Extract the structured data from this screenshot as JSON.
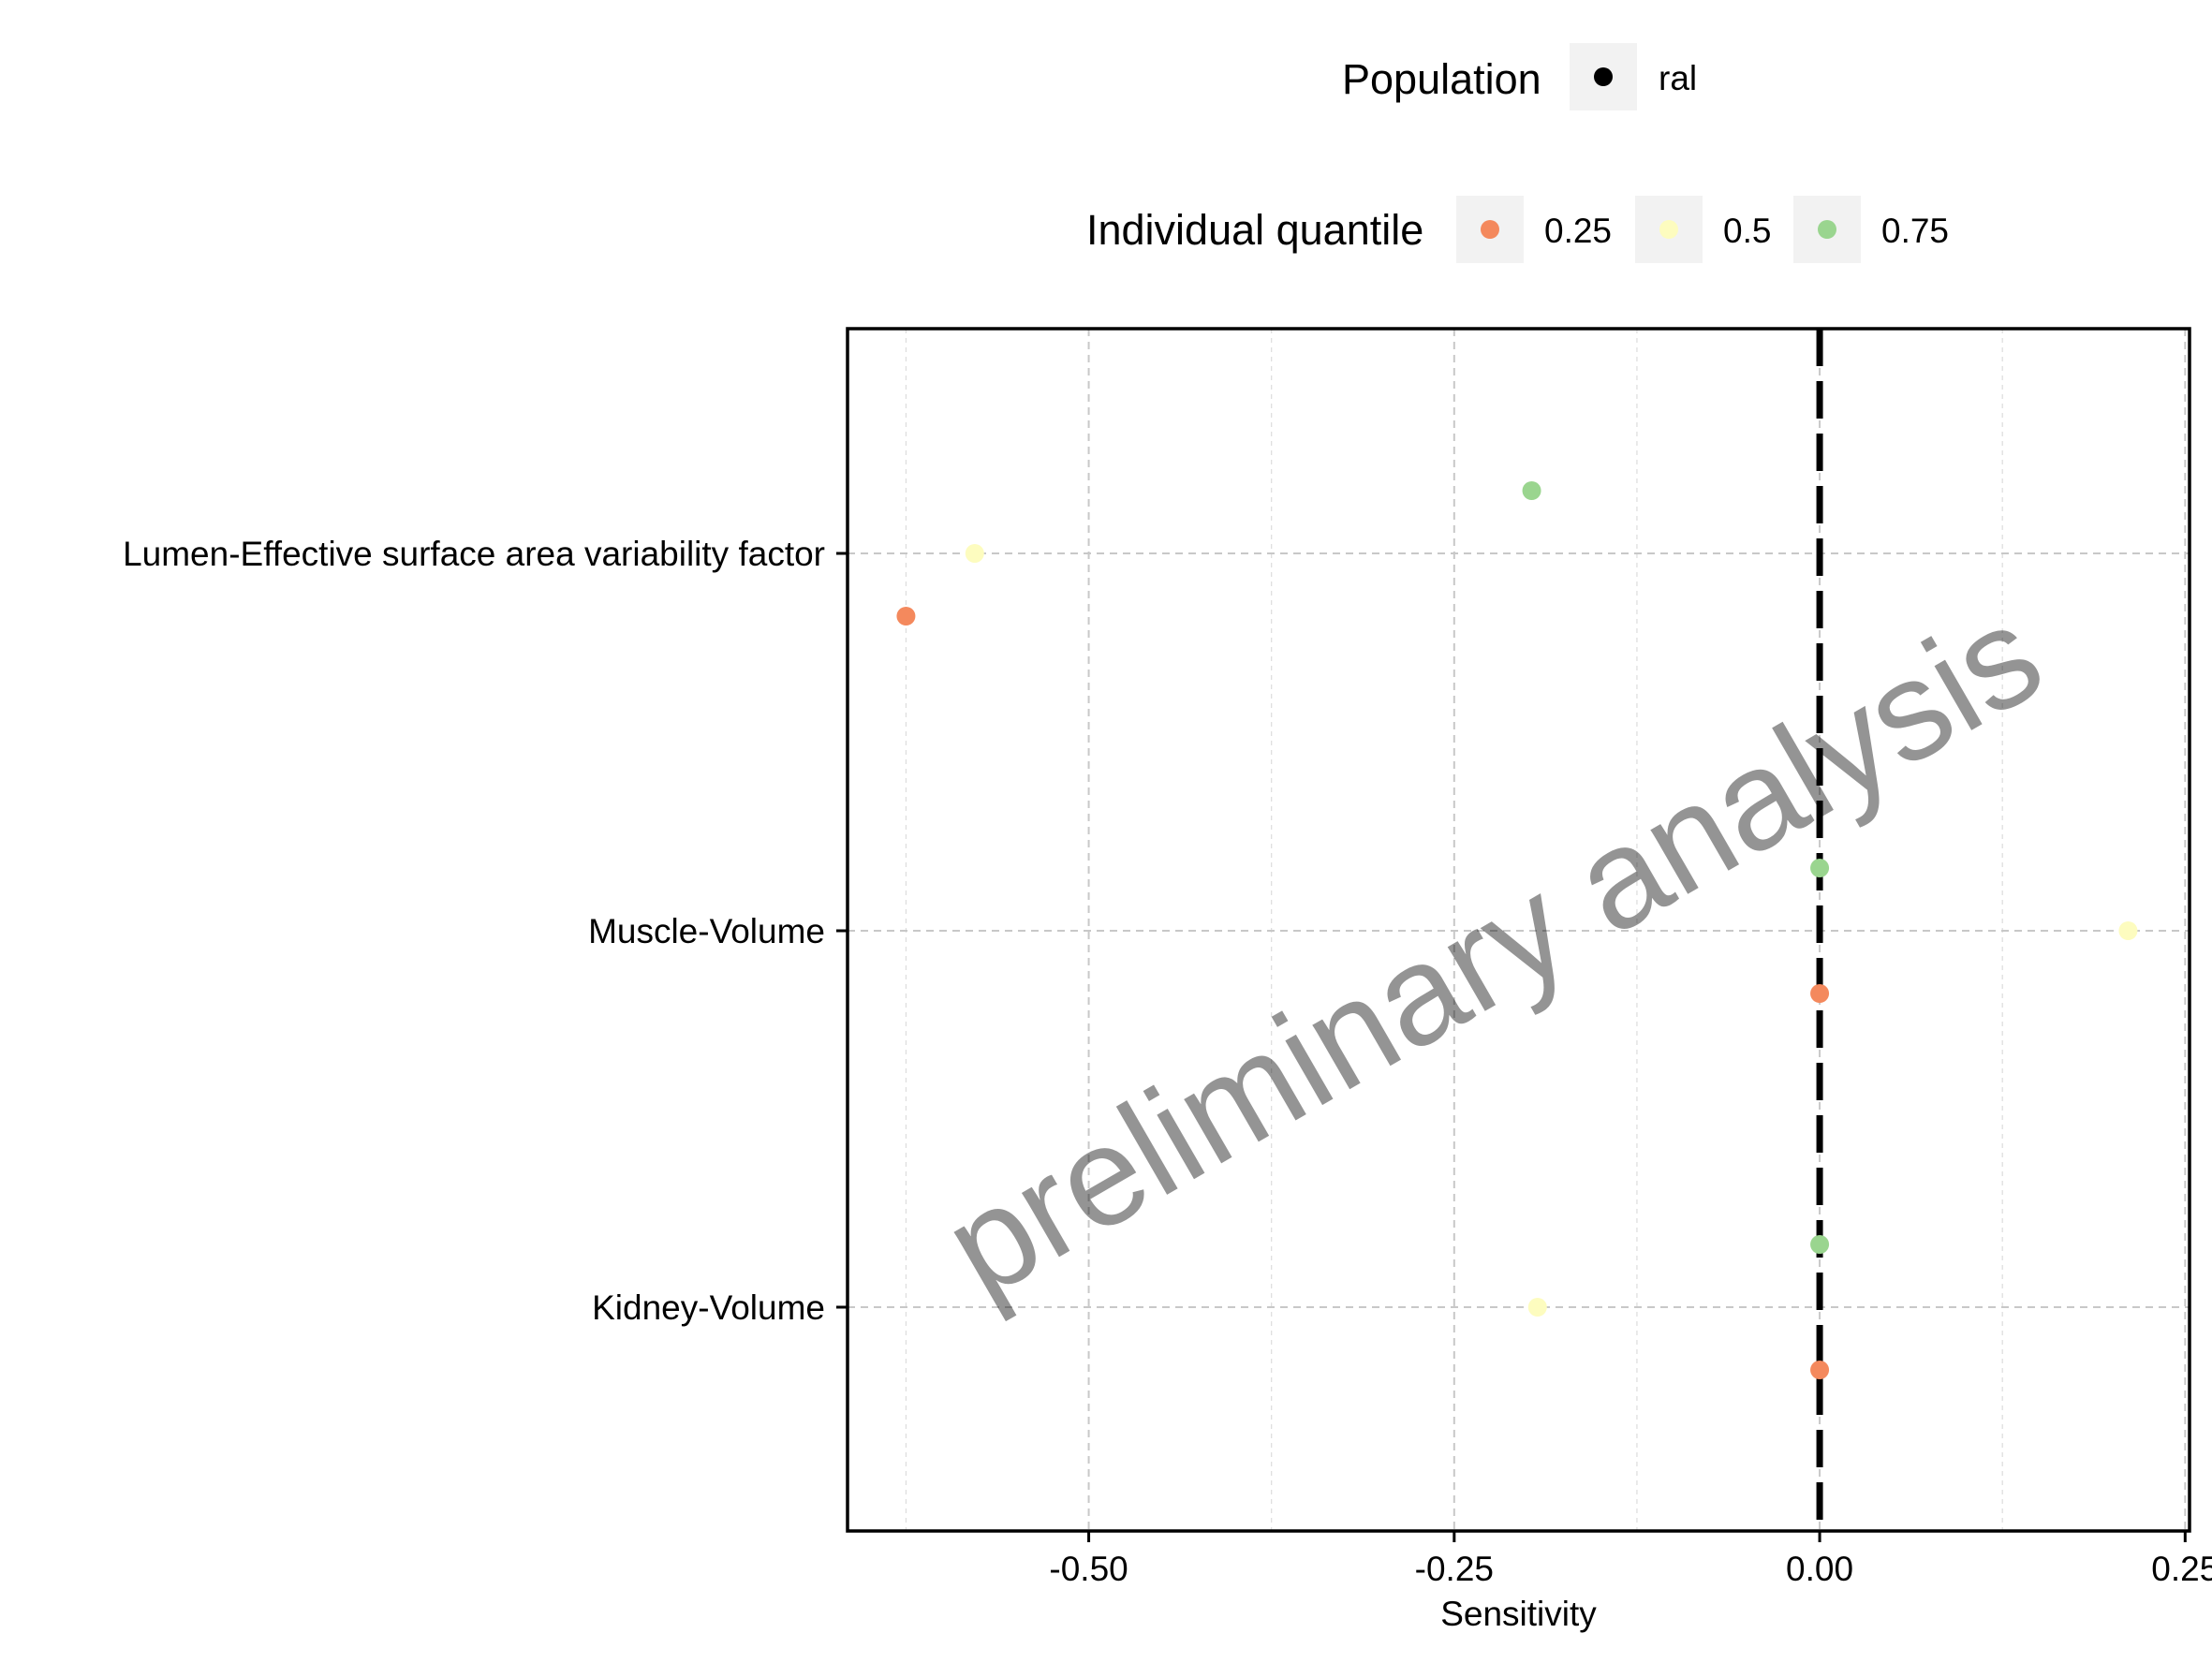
{
  "chart_data": {
    "type": "scatter",
    "title": "",
    "xlabel": "Sensitivity",
    "ylabel": "",
    "xlim": [
      -0.665,
      0.253
    ],
    "x_ticks": [
      {
        "value": -0.5,
        "label": "-0.50"
      },
      {
        "value": -0.25,
        "label": "-0.25"
      },
      {
        "value": 0.0,
        "label": "0.00"
      },
      {
        "value": 0.25,
        "label": "0.25"
      }
    ],
    "x_minor_ticks": [
      -0.625,
      -0.375,
      -0.125,
      0.125
    ],
    "categories": [
      "Lumen-Effective surface area variability factor",
      "Muscle-Volume",
      "Kidney-Volume"
    ],
    "reference_line": {
      "x": 0,
      "style": "dashed",
      "color": "#000000"
    },
    "grid": true,
    "series": [
      {
        "name": "0.25",
        "color": "#f4895d",
        "values": [
          -0.625,
          0.0,
          0.0
        ]
      },
      {
        "name": "0.5",
        "color": "#fdfcbf",
        "values": [
          -0.578,
          0.211,
          -0.193
        ]
      },
      {
        "name": "0.75",
        "color": "#9ad58f",
        "values": [
          -0.197,
          0.0,
          0.0
        ]
      }
    ],
    "legend": {
      "placement": "top",
      "population": {
        "title": "Population",
        "entries": [
          {
            "label": "ral",
            "color": "#000000"
          }
        ]
      },
      "quantile": {
        "title": "Individual quantile",
        "entries": [
          "0.25",
          "0.5",
          "0.75"
        ]
      }
    }
  },
  "watermark": "preliminary analysis"
}
